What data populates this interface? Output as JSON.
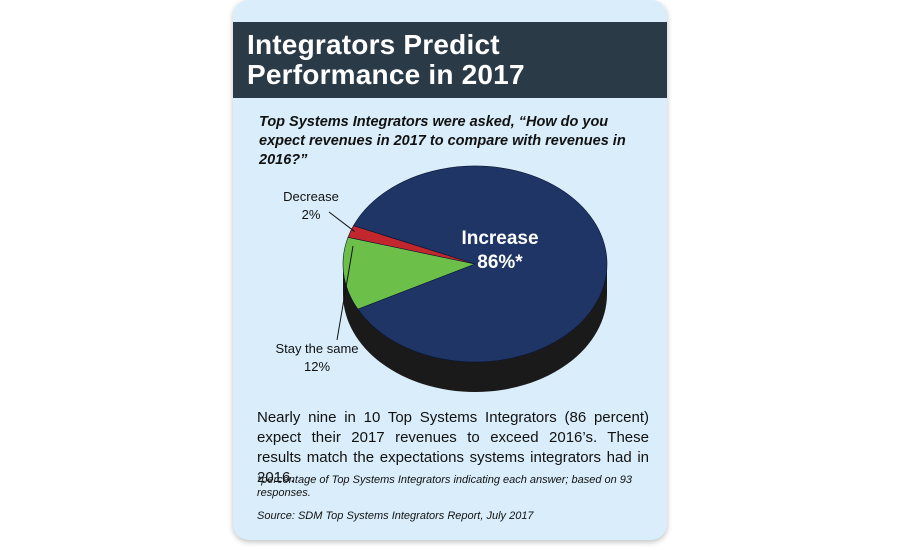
{
  "header": {
    "title_line1": "Integrators Predict",
    "title_line2": "Performance in 2017"
  },
  "question": "Top Systems Integrators were asked, “How do you expect revenues in 2017 to compare with revenues in 2016?”",
  "chart_data": {
    "type": "pie",
    "slices": [
      {
        "label": "Increase",
        "value": 86,
        "value_label": "86%*",
        "color": "#1e3566"
      },
      {
        "label": "Stay the same",
        "value": 12,
        "value_label": "12%",
        "color": "#6cc04a"
      },
      {
        "label": "Decrease",
        "value": 2,
        "value_label": "2%",
        "color": "#c1272d"
      }
    ]
  },
  "summary": "Nearly nine in 10 Top Systems Integrators (86 percent) expect their 2017 revenues to exceed 2016’s. These results match the expectations systems integrators had in 2016.",
  "footnote": "*percentage of Top Systems Integrators indicating each answer; based on 93 responses.",
  "source": "Source: SDM Top Systems Integrators Report, July 2017",
  "colors": {
    "header_bg": "#2a3a47",
    "card_bg": "#d9eefa",
    "pie_side": "#1a1a1a"
  }
}
